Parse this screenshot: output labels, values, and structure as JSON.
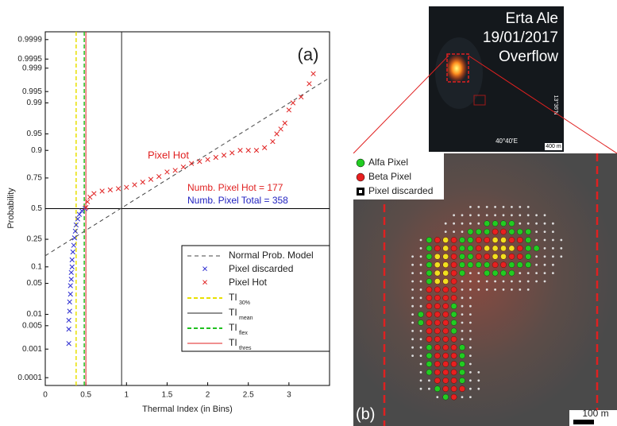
{
  "chart_data": {
    "type": "probability",
    "panel_label": "(a)",
    "xlabel": "Thermal Index (in Bins)",
    "ylabel": "Probability",
    "xlim": [
      0,
      3.5
    ],
    "ylim": [
      5e-05,
      0.99995
    ],
    "xticks": [
      0,
      0.5,
      1,
      1.5,
      2,
      2.5,
      3
    ],
    "yticks": [
      0.0001,
      0.001,
      0.005,
      0.01,
      0.05,
      0.1,
      0.25,
      0.5,
      0.75,
      0.9,
      0.95,
      0.99,
      0.995,
      0.999,
      0.9995,
      0.9999
    ],
    "reference_probability": 0.5,
    "model_line": {
      "name": "Normal Prob. Model",
      "color": "#444444",
      "x": [
        0,
        3.5
      ],
      "values": [
        0.15,
        0.998
      ]
    },
    "series": [
      {
        "name": "Pixel discarded",
        "color": "#2a2ad0",
        "x": [
          0.29,
          0.29,
          0.29,
          0.3,
          0.3,
          0.31,
          0.31,
          0.32,
          0.32,
          0.33,
          0.33,
          0.34,
          0.35,
          0.36,
          0.37,
          0.38,
          0.4,
          0.42,
          0.45,
          0.49
        ],
        "values": [
          0.0015,
          0.004,
          0.007,
          0.012,
          0.02,
          0.03,
          0.045,
          0.06,
          0.08,
          0.1,
          0.13,
          0.17,
          0.21,
          0.26,
          0.31,
          0.36,
          0.41,
          0.45,
          0.48,
          0.5
        ]
      },
      {
        "name": "Pixel Hot",
        "color": "#e02020",
        "x": [
          0.5,
          0.52,
          0.55,
          0.6,
          0.7,
          0.8,
          0.9,
          1.0,
          1.1,
          1.2,
          1.3,
          1.4,
          1.5,
          1.6,
          1.7,
          1.8,
          1.9,
          2.0,
          2.1,
          2.2,
          2.3,
          2.4,
          2.5,
          2.6,
          2.7,
          2.8,
          2.85,
          2.9,
          2.95,
          3.0,
          3.05,
          3.15,
          3.25,
          3.3
        ],
        "values": [
          0.51,
          0.56,
          0.6,
          0.63,
          0.65,
          0.66,
          0.67,
          0.68,
          0.7,
          0.72,
          0.74,
          0.76,
          0.79,
          0.8,
          0.82,
          0.84,
          0.85,
          0.86,
          0.87,
          0.88,
          0.89,
          0.9,
          0.9,
          0.9,
          0.91,
          0.93,
          0.95,
          0.96,
          0.97,
          0.985,
          0.99,
          0.993,
          0.997,
          0.9985
        ]
      }
    ],
    "thresholds": [
      {
        "name": "TI",
        "subscript": "30%",
        "value": 0.38,
        "color": "#e8e000",
        "dashed": true
      },
      {
        "name": "TI",
        "subscript": "mean",
        "value": 0.94,
        "color": "#222222",
        "dashed": false
      },
      {
        "name": "TI",
        "subscript": "flex",
        "value": 0.48,
        "color": "#20c020",
        "dashed": true
      },
      {
        "name": "TI",
        "subscript": "thres",
        "value": 0.5,
        "color": "#e02020",
        "dashed": false
      }
    ],
    "annotations": [
      "Pixel Hot",
      "Numb. Pixel Hot = 177",
      "Numb. Pixel Total = 358"
    ]
  },
  "image_top": {
    "lines": [
      "Erta Ale",
      "19/01/2017",
      "Overflow"
    ],
    "longitude": "40°40'E",
    "latitude": "13°36'N",
    "scale": "400 m"
  },
  "image_bottom": {
    "legend": [
      "Alfa Pixel",
      "Beta Pixel",
      "Pixel discarded"
    ],
    "panel_label": "(b)",
    "scale": "100 m"
  }
}
